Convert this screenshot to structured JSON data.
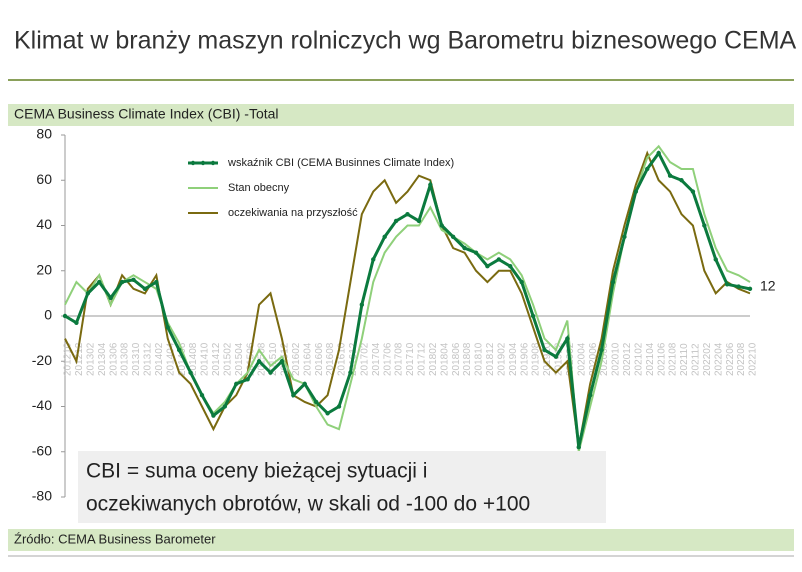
{
  "chart_data": {
    "type": "line",
    "title": "Klimat w branży maszyn rolniczych wg Barometru biznesowego CEMA",
    "subtitle": "CEMA Business Climate Index (CBI) -Total",
    "source": "Źródło: CEMA Business Barometer",
    "annotation": [
      "CBI = suma oceny bieżącej sytuacji i",
      "oczekiwanych obrotów, w skali od -100 do +100"
    ],
    "categories": [
      "201210",
      "201212",
      "201302",
      "201304",
      "201306",
      "201308",
      "201310",
      "201312",
      "201402",
      "201404",
      "201406",
      "201408",
      "201410",
      "201412",
      "201502",
      "201504",
      "201506",
      "201508",
      "201510",
      "201512",
      "201602",
      "201604",
      "201606",
      "201608",
      "201610",
      "201612",
      "201702",
      "201704",
      "201706",
      "201708",
      "201710",
      "201712",
      "201802",
      "201804",
      "201806",
      "201808",
      "201810",
      "201812",
      "201902",
      "201904",
      "201906",
      "201908",
      "201910",
      "201912",
      "202002",
      "202004",
      "202006",
      "202008",
      "202010",
      "202012",
      "202102",
      "202104",
      "202106",
      "202108",
      "202110",
      "202112",
      "202202",
      "202204",
      "202206",
      "202208",
      "202210"
    ],
    "series": [
      {
        "name": "wskaźnik CBI (CEMA Businnes Climate Index)",
        "color": "#0b7a3e",
        "markers": true,
        "values": [
          0,
          -3,
          10,
          15,
          8,
          15,
          16,
          12,
          15,
          -5,
          -15,
          -25,
          -35,
          -44,
          -40,
          -30,
          -28,
          -20,
          -25,
          -20,
          -35,
          -30,
          -38,
          -43,
          -40,
          -25,
          5,
          25,
          35,
          42,
          45,
          42,
          58,
          40,
          35,
          30,
          28,
          22,
          25,
          22,
          15,
          0,
          -15,
          -18,
          -10,
          -58,
          -35,
          -15,
          15,
          35,
          55,
          65,
          72,
          62,
          60,
          55,
          40,
          25,
          14,
          13,
          12
        ]
      },
      {
        "name": "Stan obecny",
        "color": "#8fd07a",
        "markers": false,
        "values": [
          5,
          15,
          10,
          18,
          5,
          15,
          18,
          15,
          12,
          -3,
          -12,
          -25,
          -35,
          -43,
          -38,
          -30,
          -25,
          -15,
          -22,
          -18,
          -28,
          -30,
          -40,
          -48,
          -50,
          -30,
          -10,
          15,
          28,
          35,
          40,
          40,
          48,
          38,
          35,
          32,
          28,
          25,
          28,
          25,
          18,
          5,
          -10,
          -15,
          -2,
          -60,
          -40,
          -20,
          10,
          35,
          55,
          70,
          75,
          68,
          65,
          65,
          45,
          30,
          20,
          18,
          15
        ]
      },
      {
        "name": "oczekiwania na przyszłość",
        "color": "#7a6a10",
        "markers": false,
        "values": [
          -10,
          -20,
          12,
          18,
          5,
          18,
          12,
          10,
          18,
          -10,
          -25,
          -30,
          -40,
          -50,
          -40,
          -35,
          -25,
          5,
          10,
          -10,
          -35,
          -38,
          -40,
          -35,
          -15,
          15,
          45,
          55,
          60,
          50,
          55,
          62,
          60,
          40,
          30,
          28,
          20,
          15,
          20,
          20,
          10,
          -5,
          -20,
          -25,
          -20,
          -58,
          -30,
          -10,
          20,
          40,
          58,
          72,
          60,
          55,
          45,
          40,
          20,
          10,
          15,
          12,
          10
        ]
      }
    ],
    "ylim": [
      -80,
      80
    ],
    "yticks": [
      -80,
      -60,
      -40,
      -20,
      0,
      20,
      40,
      60,
      80
    ]
  }
}
